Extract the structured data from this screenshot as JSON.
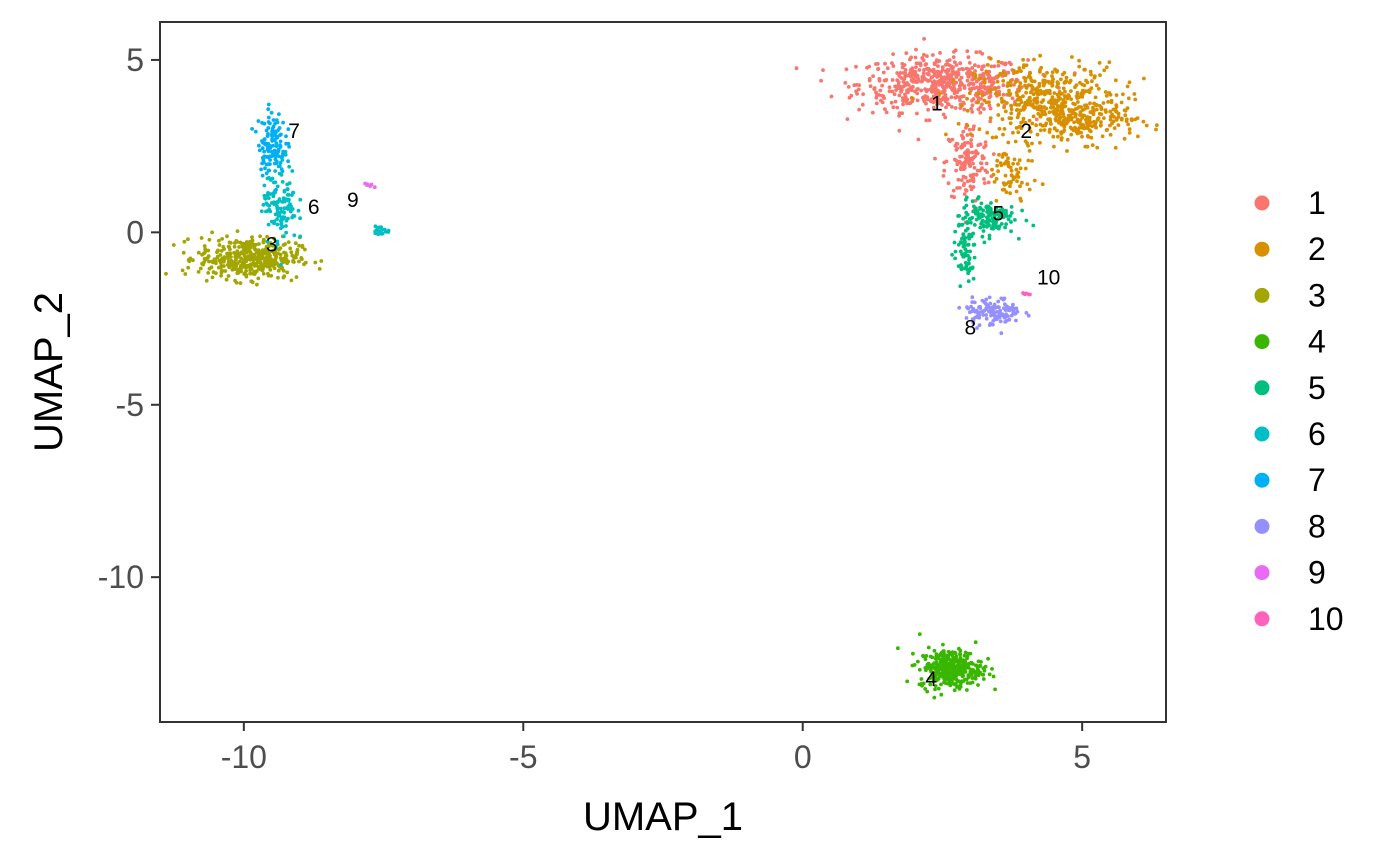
{
  "chart_data": {
    "type": "scatter",
    "xlabel": "UMAP_1",
    "ylabel": "UMAP_2",
    "xlim": [
      -11.5,
      6.5
    ],
    "ylim": [
      -14.2,
      6.1
    ],
    "x_ticks": [
      -10,
      -5,
      0,
      5
    ],
    "y_ticks": [
      5,
      0,
      -5,
      -10
    ],
    "x_tick_labels": [
      "-10",
      "-5",
      "0",
      "5"
    ],
    "y_tick_labels": [
      "5",
      "0",
      "-5",
      "-10"
    ],
    "grid": false,
    "legend_position": "right",
    "clusters": [
      {
        "name": "1",
        "color": "#F8766D",
        "label": "1",
        "label_pos": [
          2.4,
          3.7
        ],
        "n": 700,
        "blobs": [
          {
            "cx": 2.5,
            "cy": 4.3,
            "sx": 0.75,
            "sy": 0.4,
            "w": 0.8
          },
          {
            "cx": 2.95,
            "cy": 2.0,
            "sx": 0.2,
            "sy": 0.6,
            "w": 0.2
          }
        ]
      },
      {
        "name": "2",
        "color": "#D89000",
        "label": "2",
        "label_pos": [
          4.0,
          2.9
        ],
        "n": 650,
        "blobs": [
          {
            "cx": 4.4,
            "cy": 3.8,
            "sx": 0.65,
            "sy": 0.55,
            "w": 0.7
          },
          {
            "cx": 5.1,
            "cy": 3.2,
            "sx": 0.45,
            "sy": 0.3,
            "w": 0.2
          },
          {
            "cx": 3.7,
            "cy": 1.6,
            "sx": 0.2,
            "sy": 0.5,
            "w": 0.1
          }
        ]
      },
      {
        "name": "3",
        "color": "#A3A500",
        "label": "3",
        "label_pos": [
          -9.5,
          -0.4
        ],
        "n": 420,
        "blobs": [
          {
            "cx": -9.9,
            "cy": -0.75,
            "sx": 0.45,
            "sy": 0.3,
            "w": 1.0
          }
        ]
      },
      {
        "name": "4",
        "color": "#39B600",
        "label": "4",
        "label_pos": [
          2.3,
          -13.0
        ],
        "n": 350,
        "blobs": [
          {
            "cx": 2.65,
            "cy": -12.65,
            "sx": 0.28,
            "sy": 0.28,
            "w": 1.0
          }
        ]
      },
      {
        "name": "5",
        "color": "#00BF7D",
        "label": "5",
        "label_pos": [
          3.5,
          0.5
        ],
        "n": 200,
        "blobs": [
          {
            "cx": 3.3,
            "cy": 0.45,
            "sx": 0.25,
            "sy": 0.25,
            "w": 0.65
          },
          {
            "cx": 2.9,
            "cy": -0.6,
            "sx": 0.1,
            "sy": 0.45,
            "w": 0.35
          }
        ]
      },
      {
        "name": "6",
        "color": "#00BFC4",
        "label": "6",
        "label_pos": [
          -8.75,
          0.7
        ],
        "n": 150,
        "blobs": [
          {
            "cx": -9.35,
            "cy": 0.9,
            "sx": 0.15,
            "sy": 0.6,
            "w": 0.85
          },
          {
            "cx": -7.55,
            "cy": 0.05,
            "sx": 0.08,
            "sy": 0.07,
            "w": 0.15
          }
        ]
      },
      {
        "name": "7",
        "color": "#00B0F6",
        "label": "7",
        "label_pos": [
          -9.1,
          2.9
        ],
        "n": 120,
        "blobs": [
          {
            "cx": -9.5,
            "cy": 2.6,
            "sx": 0.12,
            "sy": 0.45,
            "w": 1.0
          }
        ]
      },
      {
        "name": "8",
        "color": "#9590FF",
        "label": "8",
        "label_pos": [
          3.0,
          -2.8
        ],
        "n": 120,
        "blobs": [
          {
            "cx": 3.4,
            "cy": -2.3,
            "sx": 0.25,
            "sy": 0.2,
            "w": 1.0
          }
        ]
      },
      {
        "name": "9",
        "color": "#E76BF3",
        "label": "9",
        "label_pos": [
          -8.05,
          0.9
        ],
        "n": 6,
        "blobs": [
          {
            "cx": -7.75,
            "cy": 1.35,
            "sx": 0.04,
            "sy": 0.03,
            "w": 1.0
          }
        ]
      },
      {
        "name": "10",
        "color": "#FF62BC",
        "label": "10",
        "label_pos": [
          4.4,
          -1.35
        ],
        "n": 6,
        "blobs": [
          {
            "cx": 4.0,
            "cy": -1.8,
            "sx": 0.04,
            "sy": 0.04,
            "w": 1.0
          }
        ]
      }
    ]
  }
}
